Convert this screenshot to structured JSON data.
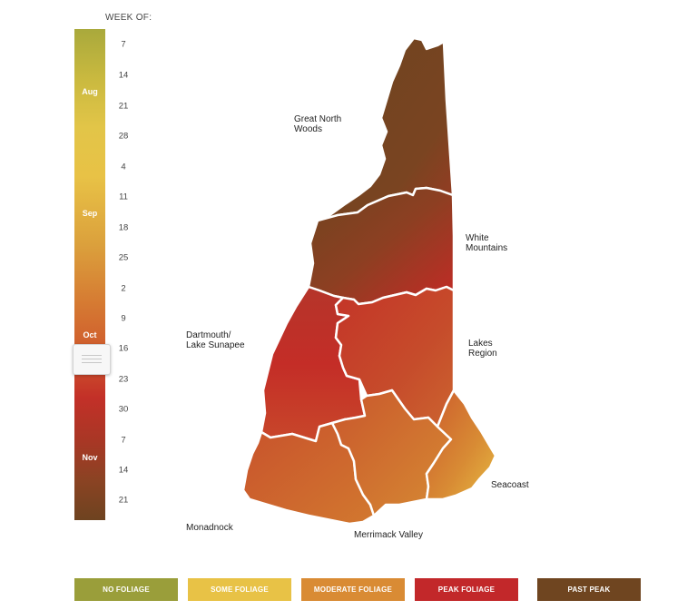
{
  "slider": {
    "heading": "WEEK OF:",
    "months": [
      "Aug",
      "Sep",
      "Oct",
      "Nov"
    ],
    "weeks": [
      "7",
      "14",
      "21",
      "28",
      "4",
      "11",
      "18",
      "25",
      "2",
      "9",
      "16",
      "23",
      "30",
      "7",
      "14",
      "21"
    ],
    "selected_week": "16",
    "selected_month": "Oct"
  },
  "regions": {
    "great_north_woods": [
      "Great North",
      "Woods"
    ],
    "white_mountains": [
      "White",
      "Mountains"
    ],
    "dartmouth": [
      "Dartmouth/",
      "Lake Sunapee"
    ],
    "lakes_region": [
      "Lakes",
      "Region"
    ],
    "seacoast": "Seacoast",
    "monadnock": "Monadnock",
    "merrimack_valley": "Merrimack Valley"
  },
  "legend": [
    {
      "label": "NO FOLIAGE",
      "color": "#9a9e3a"
    },
    {
      "label": "SOME FOLIAGE",
      "color": "#e8c246"
    },
    {
      "label": "MODERATE FOLIAGE",
      "color": "#d98b34"
    },
    {
      "label": "PEAK FOLIAGE",
      "color": "#c2282a"
    },
    {
      "label": "PAST PEAK",
      "color": "#6f4520"
    }
  ],
  "region_colors": {
    "great_north_woods": "past-peak",
    "white_mountains": "past-peak to peak",
    "dartmouth": "peak",
    "lakes_region": "peak to moderate",
    "monadnock": "moderate",
    "merrimack_valley": "moderate",
    "seacoast": "moderate to some"
  }
}
